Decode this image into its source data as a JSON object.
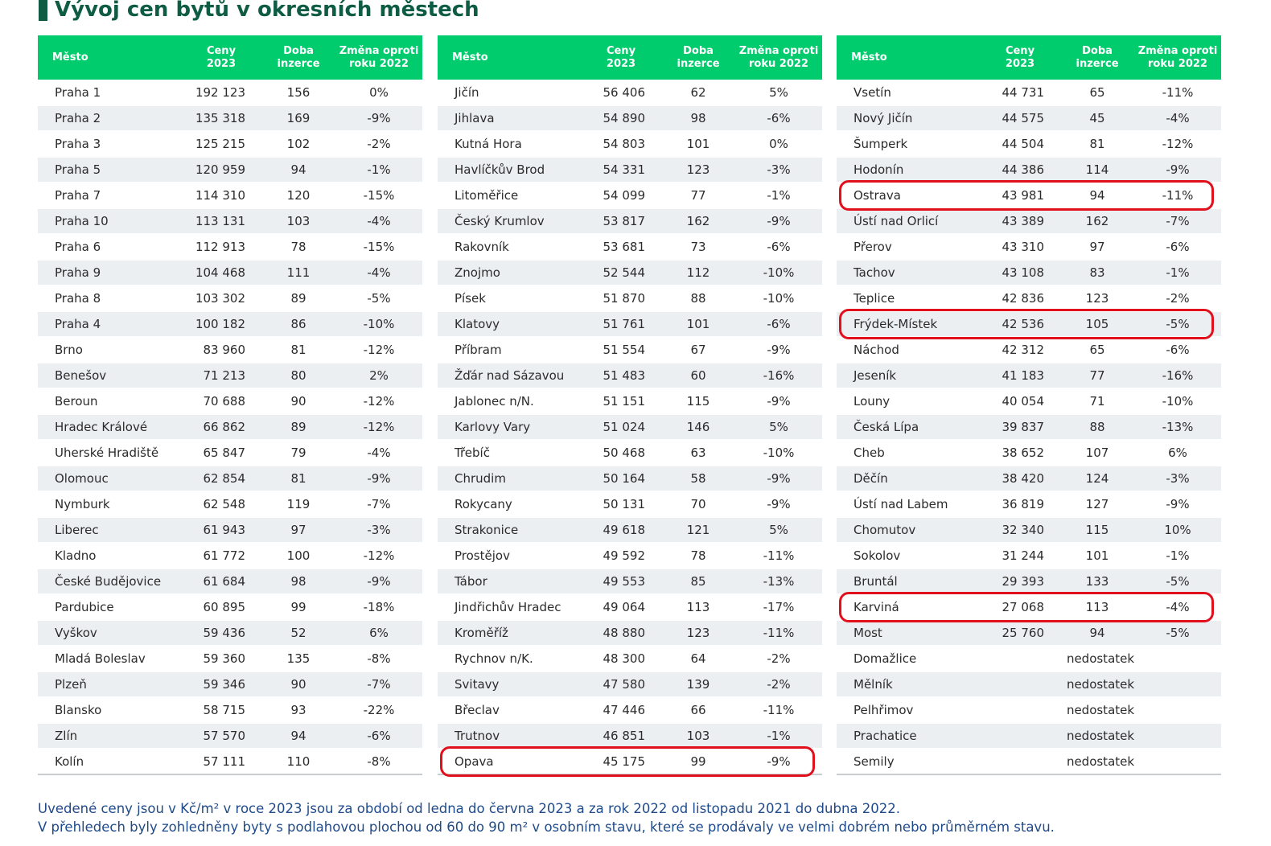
{
  "title": "Vývoj cen bytů v okresních městech",
  "headers": {
    "city": "Město",
    "price_l1": "Ceny",
    "price_l2": "2023",
    "days_l1": "Doba",
    "days_l2": "inzerce",
    "change_l1": "Změna oproti",
    "change_l2": "roku 2022"
  },
  "tables": [
    {
      "rows": [
        {
          "city": "Praha 1",
          "price": "192 123",
          "days": "156",
          "change": "0%"
        },
        {
          "city": "Praha 2",
          "price": "135 318",
          "days": "169",
          "change": "-9%"
        },
        {
          "city": "Praha 3",
          "price": "125 215",
          "days": "102",
          "change": "-2%"
        },
        {
          "city": "Praha 5",
          "price": "120 959",
          "days": "94",
          "change": "-1%"
        },
        {
          "city": "Praha 7",
          "price": "114 310",
          "days": "120",
          "change": "-15%"
        },
        {
          "city": "Praha 10",
          "price": "113 131",
          "days": "103",
          "change": "-4%"
        },
        {
          "city": "Praha 6",
          "price": "112 913",
          "days": "78",
          "change": "-15%"
        },
        {
          "city": "Praha 9",
          "price": "104 468",
          "days": "111",
          "change": "-4%"
        },
        {
          "city": "Praha 8",
          "price": "103 302",
          "days": "89",
          "change": "-5%"
        },
        {
          "city": "Praha 4",
          "price": "100 182",
          "days": "86",
          "change": "-10%"
        },
        {
          "city": "Brno",
          "price": "83 960",
          "days": "81",
          "change": "-12%"
        },
        {
          "city": "Benešov",
          "price": "71 213",
          "days": "80",
          "change": "2%"
        },
        {
          "city": "Beroun",
          "price": "70 688",
          "days": "90",
          "change": "-12%"
        },
        {
          "city": "Hradec Králové",
          "price": "66 862",
          "days": "89",
          "change": "-12%"
        },
        {
          "city": "Uherské Hradiště",
          "price": "65 847",
          "days": "79",
          "change": "-4%"
        },
        {
          "city": "Olomouc",
          "price": "62 854",
          "days": "81",
          "change": "-9%"
        },
        {
          "city": "Nymburk",
          "price": "62 548",
          "days": "119",
          "change": "-7%"
        },
        {
          "city": "Liberec",
          "price": "61 943",
          "days": "97",
          "change": "-3%"
        },
        {
          "city": "Kladno",
          "price": "61 772",
          "days": "100",
          "change": "-12%"
        },
        {
          "city": "České Budějovice",
          "price": "61 684",
          "days": "98",
          "change": "-9%"
        },
        {
          "city": "Pardubice",
          "price": "60 895",
          "days": "99",
          "change": "-18%"
        },
        {
          "city": "Vyškov",
          "price": "59 436",
          "days": "52",
          "change": "6%"
        },
        {
          "city": "Mladá Boleslav",
          "price": "59 360",
          "days": "135",
          "change": "-8%"
        },
        {
          "city": "Plzeň",
          "price": "59 346",
          "days": "90",
          "change": "-7%"
        },
        {
          "city": "Blansko",
          "price": "58 715",
          "days": "93",
          "change": "-22%"
        },
        {
          "city": "Zlín",
          "price": "57 570",
          "days": "94",
          "change": "-6%"
        },
        {
          "city": "Kolín",
          "price": "57 111",
          "days": "110",
          "change": "-8%"
        }
      ]
    },
    {
      "rows": [
        {
          "city": "Jičín",
          "price": "56 406",
          "days": "62",
          "change": "5%"
        },
        {
          "city": "Jihlava",
          "price": "54 890",
          "days": "98",
          "change": "-6%"
        },
        {
          "city": "Kutná Hora",
          "price": "54 803",
          "days": "101",
          "change": "0%"
        },
        {
          "city": "Havlíčkův Brod",
          "price": "54 331",
          "days": "123",
          "change": "-3%"
        },
        {
          "city": "Litoměřice",
          "price": "54 099",
          "days": "77",
          "change": "-1%"
        },
        {
          "city": "Český Krumlov",
          "price": "53 817",
          "days": "162",
          "change": "-9%"
        },
        {
          "city": "Rakovník",
          "price": "53 681",
          "days": "73",
          "change": "-6%"
        },
        {
          "city": "Znojmo",
          "price": "52 544",
          "days": "112",
          "change": "-10%"
        },
        {
          "city": "Písek",
          "price": "51 870",
          "days": "88",
          "change": "-10%"
        },
        {
          "city": "Klatovy",
          "price": "51 761",
          "days": "101",
          "change": "-6%"
        },
        {
          "city": "Příbram",
          "price": "51 554",
          "days": "67",
          "change": "-9%"
        },
        {
          "city": "Žďár nad Sázavou",
          "price": "51 483",
          "days": "60",
          "change": "-16%"
        },
        {
          "city": "Jablonec n/N.",
          "price": "51 151",
          "days": "115",
          "change": "-9%"
        },
        {
          "city": "Karlovy Vary",
          "price": "51 024",
          "days": "146",
          "change": "5%"
        },
        {
          "city": "Třebíč",
          "price": "50 468",
          "days": "63",
          "change": "-10%"
        },
        {
          "city": "Chrudim",
          "price": "50 164",
          "days": "58",
          "change": "-9%"
        },
        {
          "city": "Rokycany",
          "price": "50 131",
          "days": "70",
          "change": "-9%"
        },
        {
          "city": "Strakonice",
          "price": "49 618",
          "days": "121",
          "change": "5%"
        },
        {
          "city": "Prostějov",
          "price": "49 592",
          "days": "78",
          "change": "-11%"
        },
        {
          "city": "Tábor",
          "price": "49 553",
          "days": "85",
          "change": "-13%"
        },
        {
          "city": "Jindřichův Hradec",
          "price": "49 064",
          "days": "113",
          "change": "-17%"
        },
        {
          "city": "Kroměříž",
          "price": "48 880",
          "days": "123",
          "change": "-11%"
        },
        {
          "city": "Rychnov n/K.",
          "price": "48 300",
          "days": "64",
          "change": "-2%"
        },
        {
          "city": "Svitavy",
          "price": "47 580",
          "days": "139",
          "change": "-2%"
        },
        {
          "city": "Břeclav",
          "price": "47 446",
          "days": "66",
          "change": "-11%"
        },
        {
          "city": "Trutnov",
          "price": "46 851",
          "days": "103",
          "change": "-1%"
        },
        {
          "city": "Opava",
          "price": "45 175",
          "days": "99",
          "change": "-9%",
          "highlight": true
        }
      ]
    },
    {
      "rows": [
        {
          "city": "Vsetín",
          "price": "44 731",
          "days": "65",
          "change": "-11%"
        },
        {
          "city": "Nový Jičín",
          "price": "44 575",
          "days": "45",
          "change": "-4%"
        },
        {
          "city": "Šumperk",
          "price": "44 504",
          "days": "81",
          "change": "-12%"
        },
        {
          "city": "Hodonín",
          "price": "44 386",
          "days": "114",
          "change": "-9%"
        },
        {
          "city": "Ostrava",
          "price": "43 981",
          "days": "94",
          "change": "-11%",
          "highlight": true
        },
        {
          "city": "Ústí nad Orlicí",
          "price": "43 389",
          "days": "162",
          "change": "-7%"
        },
        {
          "city": "Přerov",
          "price": "43 310",
          "days": "97",
          "change": "-6%"
        },
        {
          "city": "Tachov",
          "price": "43 108",
          "days": "83",
          "change": "-1%"
        },
        {
          "city": "Teplice",
          "price": "42 836",
          "days": "123",
          "change": "-2%"
        },
        {
          "city": "Frýdek-Místek",
          "price": "42 536",
          "days": "105",
          "change": "-5%",
          "highlight": true
        },
        {
          "city": "Náchod",
          "price": "42 312",
          "days": "65",
          "change": "-6%"
        },
        {
          "city": "Jeseník",
          "price": "41 183",
          "days": "77",
          "change": "-16%"
        },
        {
          "city": "Louny",
          "price": "40 054",
          "days": "71",
          "change": "-10%"
        },
        {
          "city": "Česká Lípa",
          "price": "39 837",
          "days": "88",
          "change": "-13%"
        },
        {
          "city": "Cheb",
          "price": "38 652",
          "days": "107",
          "change": "6%"
        },
        {
          "city": "Děčín",
          "price": "38 420",
          "days": "124",
          "change": "-3%"
        },
        {
          "city": "Ústí nad Labem",
          "price": "36 819",
          "days": "127",
          "change": "-9%"
        },
        {
          "city": "Chomutov",
          "price": "32 340",
          "days": "115",
          "change": "10%"
        },
        {
          "city": "Sokolov",
          "price": "31 244",
          "days": "101",
          "change": "-1%"
        },
        {
          "city": "Bruntál",
          "price": "29 393",
          "days": "133",
          "change": "-5%"
        },
        {
          "city": "Karviná",
          "price": "27 068",
          "days": "113",
          "change": "-4%",
          "highlight": true
        },
        {
          "city": "Most",
          "price": "25 760",
          "days": "94",
          "change": "-5%"
        },
        {
          "city": "Domažlice",
          "missing": "nedostatek"
        },
        {
          "city": "Mělník",
          "missing": "nedostatek"
        },
        {
          "city": "Pelhřimov",
          "missing": "nedostatek"
        },
        {
          "city": "Prachatice",
          "missing": "nedostatek"
        },
        {
          "city": "Semily",
          "missing": "nedostatek"
        }
      ]
    }
  ],
  "notes": [
    "Uvedené ceny jsou v Kč/m² v roce 2023 jsou za období od ledna do června 2023 a za rok 2022 od listopadu 2021 do dubna 2022.",
    "V přehledech byly zohledněny byty s podlahovou plochou od 60 do 90 m² v osobním stavu, které se prodávaly ve velmi dobrém nebo průměrném stavu."
  ],
  "colors": {
    "header_bg": "#00cc6d",
    "title": "#0f5c45",
    "stripe": "#eceff1",
    "highlight_outline": "#e0101d",
    "note_text": "#1f4a8a"
  }
}
